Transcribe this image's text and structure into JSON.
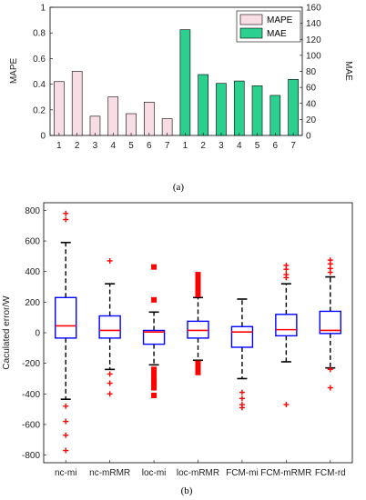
{
  "chart_data": [
    {
      "type": "bar",
      "panel_label": "(a)",
      "categories": [
        "1",
        "2",
        "3",
        "4",
        "5",
        "6",
        "7"
      ],
      "series": [
        {
          "name": "MAPE",
          "axis": "left",
          "values": [
            0.42,
            0.5,
            0.15,
            0.3,
            0.17,
            0.26,
            0.13
          ],
          "color": "#f8dde4"
        },
        {
          "name": "MAE",
          "axis": "right",
          "values": [
            132,
            76,
            65,
            68,
            62,
            50,
            70
          ],
          "color": "#2bd08f"
        }
      ],
      "ylabel": "MAPE",
      "y2label": "MAE",
      "ylim": [
        0,
        1
      ],
      "y2lim": [
        0,
        160
      ],
      "yticks": [
        "0",
        "0.2",
        "0.4",
        "0.6",
        "0.8",
        "1"
      ],
      "y2ticks": [
        "0",
        "20",
        "40",
        "60",
        "80",
        "100",
        "120",
        "140",
        "160"
      ],
      "legend_position": "top-right"
    },
    {
      "type": "box",
      "panel_label": "(b)",
      "ylabel": "Caculated error/W",
      "ylim": [
        -850,
        850
      ],
      "yticks": [
        "-800",
        "-600",
        "-400",
        "-200",
        "0",
        "200",
        "400",
        "600",
        "800"
      ],
      "categories": [
        "nc-mi",
        "nc-mRMR",
        "loc-mi",
        "loc-mRMR",
        "FCM-mi",
        "FCM-mRMR",
        "FCM-rd"
      ],
      "boxes": [
        {
          "q1": -35,
          "median": 45,
          "q3": 230,
          "whisker_low": -435,
          "whisker_high": 590,
          "outliers": [
            780,
            740,
            -480,
            -580,
            -670,
            -770
          ]
        },
        {
          "q1": -35,
          "median": 15,
          "q3": 110,
          "whisker_low": -240,
          "whisker_high": 320,
          "outliers": [
            470,
            -270,
            -330,
            -400
          ]
        },
        {
          "q1": -75,
          "median": 5,
          "q3": 15,
          "whisker_low": -210,
          "whisker_high": 135,
          "outliers": [
            430,
            215,
            -240,
            -270,
            -300,
            -320,
            -340,
            -360,
            -410
          ]
        },
        {
          "q1": -35,
          "median": 15,
          "q3": 75,
          "whisker_low": -180,
          "whisker_high": 230,
          "outliers": [
            380,
            370,
            355,
            340,
            325,
            310,
            295,
            280,
            265,
            250,
            -200,
            -215,
            -230,
            -245,
            -260
          ]
        },
        {
          "q1": -95,
          "median": 5,
          "q3": 40,
          "whisker_low": -300,
          "whisker_high": 220,
          "outliers": [
            -390,
            -430,
            -470,
            -490
          ]
        },
        {
          "q1": -20,
          "median": 20,
          "q3": 120,
          "whisker_low": -190,
          "whisker_high": 320,
          "outliers": [
            440,
            415,
            380,
            360,
            -470
          ]
        },
        {
          "q1": -5,
          "median": 15,
          "q3": 140,
          "whisker_low": -230,
          "whisker_high": 365,
          "outliers": [
            475,
            450,
            420,
            395,
            -240,
            -360
          ]
        }
      ],
      "box_color": "#0000ff",
      "median_color": "#ff0000",
      "outlier_color": "#ff0000",
      "whisker_color": "#000000"
    }
  ]
}
